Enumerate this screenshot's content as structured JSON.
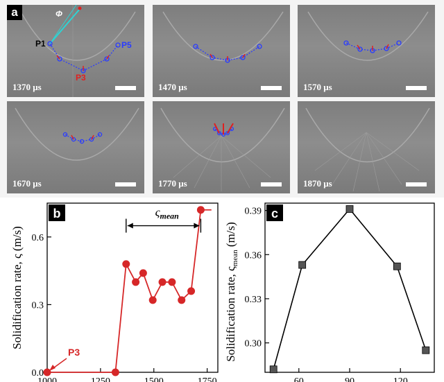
{
  "panel_a": {
    "letter": "a",
    "angle_label": "Φ",
    "point_labels": [
      "P1",
      "P3",
      "P5"
    ],
    "frames": [
      {
        "time": "1370 μs"
      },
      {
        "time": "1470 μs"
      },
      {
        "time": "1570 μs"
      },
      {
        "time": "1670 μs"
      },
      {
        "time": "1770 μs"
      },
      {
        "time": "1870 μs"
      }
    ]
  },
  "chart_data": [
    {
      "panel": "b",
      "type": "line",
      "ylabel_main": "Solidification rate, ς",
      "ylabel_unit": "(m/s)",
      "annotation": "ς",
      "annotation_sub": "mean",
      "point_label": "P3",
      "x_ticks": [
        "1000",
        "1250",
        "1500",
        "1750"
      ],
      "y_ticks": [
        "0.0",
        "0.3",
        "0.6"
      ],
      "xlim": [
        1000,
        1800
      ],
      "ylim": [
        0,
        0.75
      ],
      "x": [
        1000,
        1320,
        1370,
        1415,
        1450,
        1495,
        1540,
        1585,
        1630,
        1675,
        1720,
        1770
      ],
      "y": [
        0.0,
        0.0,
        0.48,
        0.4,
        0.44,
        0.32,
        0.4,
        0.4,
        0.32,
        0.36,
        0.72,
        0.72
      ],
      "color": "#d62728"
    },
    {
      "panel": "c",
      "type": "line",
      "ylabel_main": "Solidification rate, ς",
      "ylabel_sub": "mean",
      "ylabel_unit": "(m/s)",
      "x_ticks": [
        "60",
        "90",
        "120"
      ],
      "y_ticks": [
        "0.30",
        "0.33",
        "0.36",
        "0.39"
      ],
      "xlim": [
        40,
        140
      ],
      "ylim": [
        0.28,
        0.395
      ],
      "x": [
        45,
        62,
        90,
        118,
        135
      ],
      "y": [
        0.282,
        0.353,
        0.391,
        0.352,
        0.295
      ],
      "color": "#000000"
    }
  ]
}
